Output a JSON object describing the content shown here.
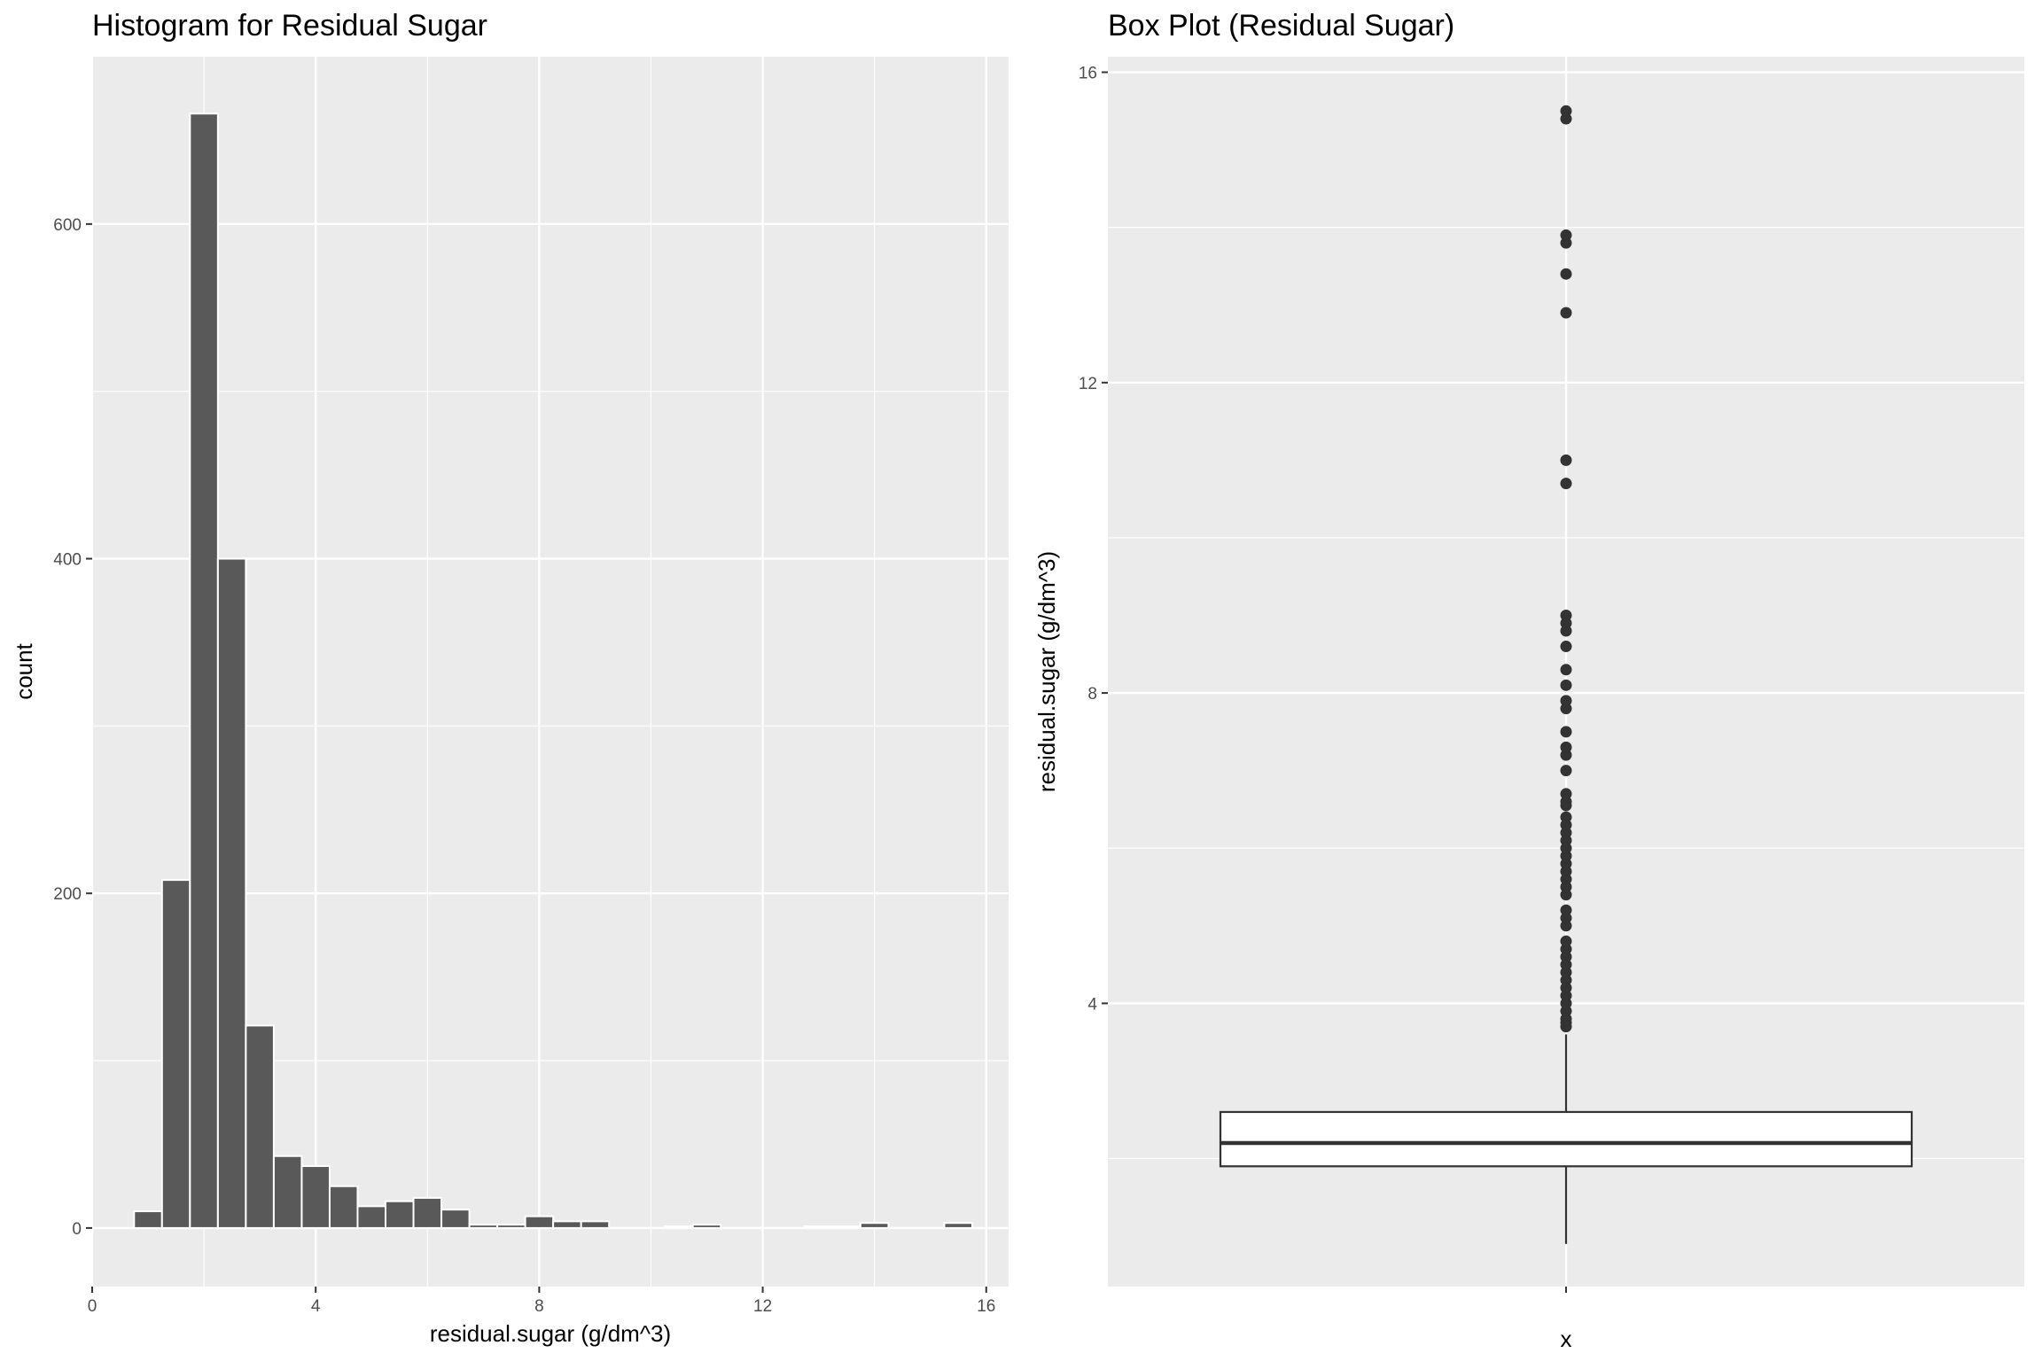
{
  "colors": {
    "panel": "#ebebeb",
    "grid_major": "#ffffff",
    "bar_fill": "#595959",
    "bar_outline": "#ffffff",
    "box_line": "#333333",
    "box_fill": "#ffffff"
  },
  "chart_data": [
    {
      "type": "bar",
      "title": "Histogram for Residual Sugar",
      "xlabel": "residual.sugar (g/dm^3)",
      "ylabel": "count",
      "xlim": [
        0,
        16.4
      ],
      "ylim": [
        -35,
        700
      ],
      "xticks": [
        0,
        4,
        8,
        12,
        16
      ],
      "yticks": [
        0,
        200,
        400,
        600
      ],
      "grid": true,
      "bin_width": 0.5,
      "bins": [
        {
          "x": 1.0,
          "count": 10
        },
        {
          "x": 1.5,
          "count": 208
        },
        {
          "x": 2.0,
          "count": 666
        },
        {
          "x": 2.5,
          "count": 400
        },
        {
          "x": 3.0,
          "count": 121
        },
        {
          "x": 3.5,
          "count": 43
        },
        {
          "x": 4.0,
          "count": 37
        },
        {
          "x": 4.5,
          "count": 25
        },
        {
          "x": 5.0,
          "count": 13
        },
        {
          "x": 5.5,
          "count": 16
        },
        {
          "x": 6.0,
          "count": 18
        },
        {
          "x": 6.5,
          "count": 11
        },
        {
          "x": 7.0,
          "count": 2
        },
        {
          "x": 7.5,
          "count": 2
        },
        {
          "x": 8.0,
          "count": 7
        },
        {
          "x": 8.5,
          "count": 4
        },
        {
          "x": 9.0,
          "count": 4
        },
        {
          "x": 9.5,
          "count": 0
        },
        {
          "x": 10.0,
          "count": 0
        },
        {
          "x": 10.5,
          "count": 1
        },
        {
          "x": 11.0,
          "count": 2
        },
        {
          "x": 11.5,
          "count": 0
        },
        {
          "x": 12.0,
          "count": 0
        },
        {
          "x": 12.5,
          "count": 0
        },
        {
          "x": 13.0,
          "count": 1
        },
        {
          "x": 13.5,
          "count": 1
        },
        {
          "x": 14.0,
          "count": 3
        },
        {
          "x": 14.5,
          "count": 0
        },
        {
          "x": 15.0,
          "count": 0
        },
        {
          "x": 15.5,
          "count": 3
        }
      ]
    },
    {
      "type": "box",
      "title": "Box Plot (Residual Sugar)",
      "xlabel": "x",
      "ylabel": "residual.sugar (g/dm^3)",
      "ylim": [
        0.35,
        16.2
      ],
      "yticks": [
        4,
        8,
        12,
        16
      ],
      "grid": true,
      "box": {
        "min": 0.9,
        "q1": 1.9,
        "median": 2.2,
        "q3": 2.6,
        "whisker_high": 3.6
      },
      "outliers": [
        3.7,
        3.75,
        3.8,
        3.9,
        4.0,
        4.1,
        4.2,
        4.3,
        4.4,
        4.5,
        4.6,
        4.7,
        4.8,
        5.0,
        5.1,
        5.2,
        5.4,
        5.5,
        5.6,
        5.7,
        5.8,
        5.9,
        6.0,
        6.1,
        6.2,
        6.3,
        6.4,
        6.55,
        6.6,
        6.7,
        7.0,
        7.2,
        7.3,
        7.5,
        7.8,
        7.9,
        8.1,
        8.3,
        8.6,
        8.8,
        8.9,
        9.0,
        10.7,
        11.0,
        12.9,
        13.4,
        13.8,
        13.9,
        15.4,
        15.5
      ]
    }
  ]
}
